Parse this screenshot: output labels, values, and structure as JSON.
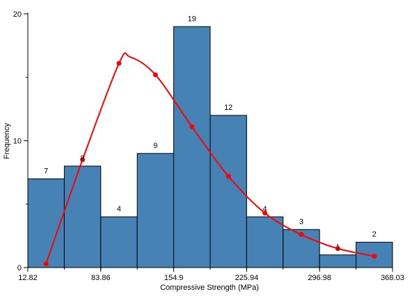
{
  "chart_data": {
    "type": "bar",
    "xlabel": "Compressive Strength (MPa)",
    "ylabel": "Frequency",
    "ylim": [
      0,
      20
    ],
    "xlim": [
      12.82,
      368.03
    ],
    "y_ticks": [
      "0",
      "10",
      "20"
    ],
    "x_tick_labels": [
      "12.82",
      "83.86",
      "154.9",
      "225.94",
      "296.98",
      "368.03"
    ],
    "x_tick_values": [
      12.82,
      83.86,
      154.9,
      225.94,
      296.98,
      368.03
    ],
    "bin_edges": [
      12.82,
      48.34,
      83.86,
      119.38,
      154.9,
      190.42,
      225.94,
      261.46,
      296.98,
      332.5,
      368.03
    ],
    "values": [
      7,
      8,
      4,
      9,
      19,
      12,
      4,
      3,
      1,
      2
    ],
    "data_labels": [
      "7",
      "8",
      "4",
      "9",
      "19",
      "12",
      "4",
      "3",
      "1",
      "2"
    ],
    "curve": {
      "points": [
        {
          "x": 30.6,
          "y": 0.3
        },
        {
          "x": 66.1,
          "y": 8.5
        },
        {
          "x": 101.6,
          "y": 16.1
        },
        {
          "x": 137.1,
          "y": 15.2
        },
        {
          "x": 172.7,
          "y": 11.1
        },
        {
          "x": 208.2,
          "y": 7.2
        },
        {
          "x": 243.7,
          "y": 4.3
        },
        {
          "x": 279.2,
          "y": 2.6
        },
        {
          "x": 314.7,
          "y": 1.5
        },
        {
          "x": 350.3,
          "y": 0.9
        }
      ],
      "peak": {
        "x": 112.5,
        "y": 16.6
      }
    },
    "colors": {
      "bar_fill": "#4682b4",
      "bar_stroke": "#000000",
      "curve": "#ff0000"
    },
    "grid": false,
    "legend": "none"
  }
}
